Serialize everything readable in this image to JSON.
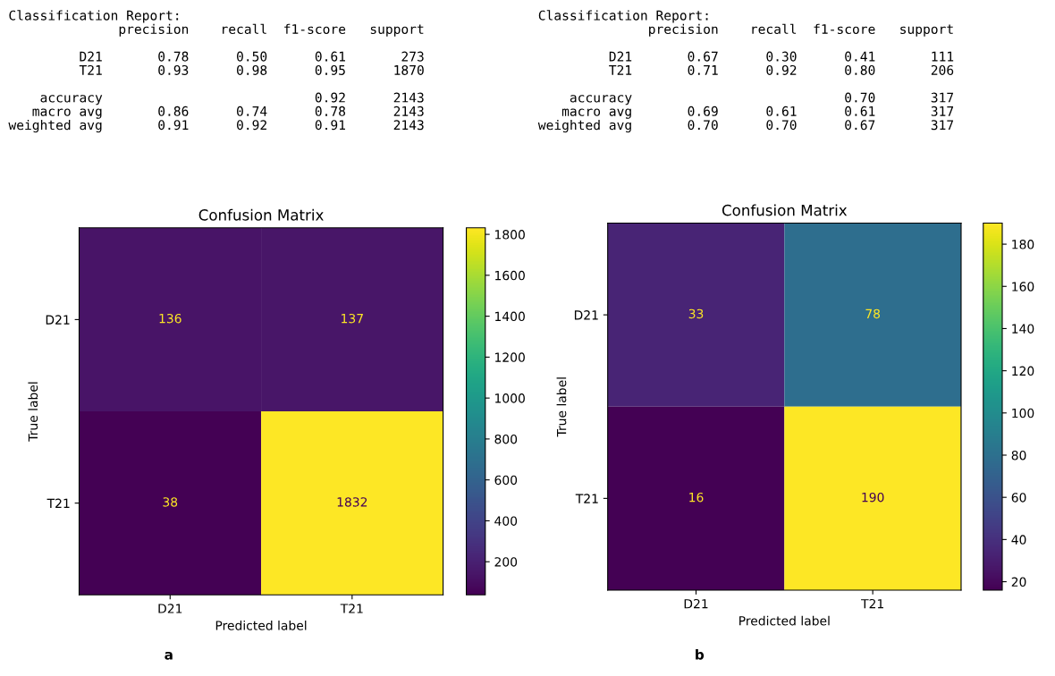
{
  "chart_data": [
    {
      "type": "heatmap",
      "title": "Confusion Matrix",
      "xlabel": "Predicted label",
      "ylabel": "True label",
      "categories": [
        "D21",
        "T21"
      ],
      "y_categories": [
        "D21",
        "T21"
      ],
      "cells": [
        [
          136,
          137
        ],
        [
          38,
          1832
        ]
      ],
      "clim": [
        38,
        1832
      ],
      "cticks": [
        200,
        400,
        600,
        800,
        1000,
        1200,
        1400,
        1600,
        1800
      ],
      "data_labels": true,
      "annotations": [
        "Classification Report:\n              precision    recall  f1-score   support\n\n         D21       0.78      0.50      0.61       273\n         T21       0.93      0.98      0.95      1870\n\n    accuracy                           0.92      2143\n   macro avg       0.86      0.74      0.78      2143\nweighted avg       0.91      0.92      0.91      2143",
        "a"
      ]
    },
    {
      "type": "heatmap",
      "title": "Confusion Matrix",
      "xlabel": "Predicted label",
      "ylabel": "True label",
      "categories": [
        "D21",
        "T21"
      ],
      "y_categories": [
        "D21",
        "T21"
      ],
      "cells": [
        [
          33,
          78
        ],
        [
          16,
          190
        ]
      ],
      "clim": [
        16,
        190
      ],
      "cticks": [
        20,
        40,
        60,
        80,
        100,
        120,
        140,
        160,
        180
      ],
      "data_labels": true,
      "annotations": [
        "Classification Report:\n              precision    recall  f1-score   support\n\n         D21       0.67      0.30      0.41       111\n         T21       0.71      0.92      0.80       206\n\n    accuracy                           0.70       317\n   macro avg       0.69      0.61      0.61       317\nweighted avg       0.70      0.70      0.67       317",
        "b"
      ]
    }
  ]
}
